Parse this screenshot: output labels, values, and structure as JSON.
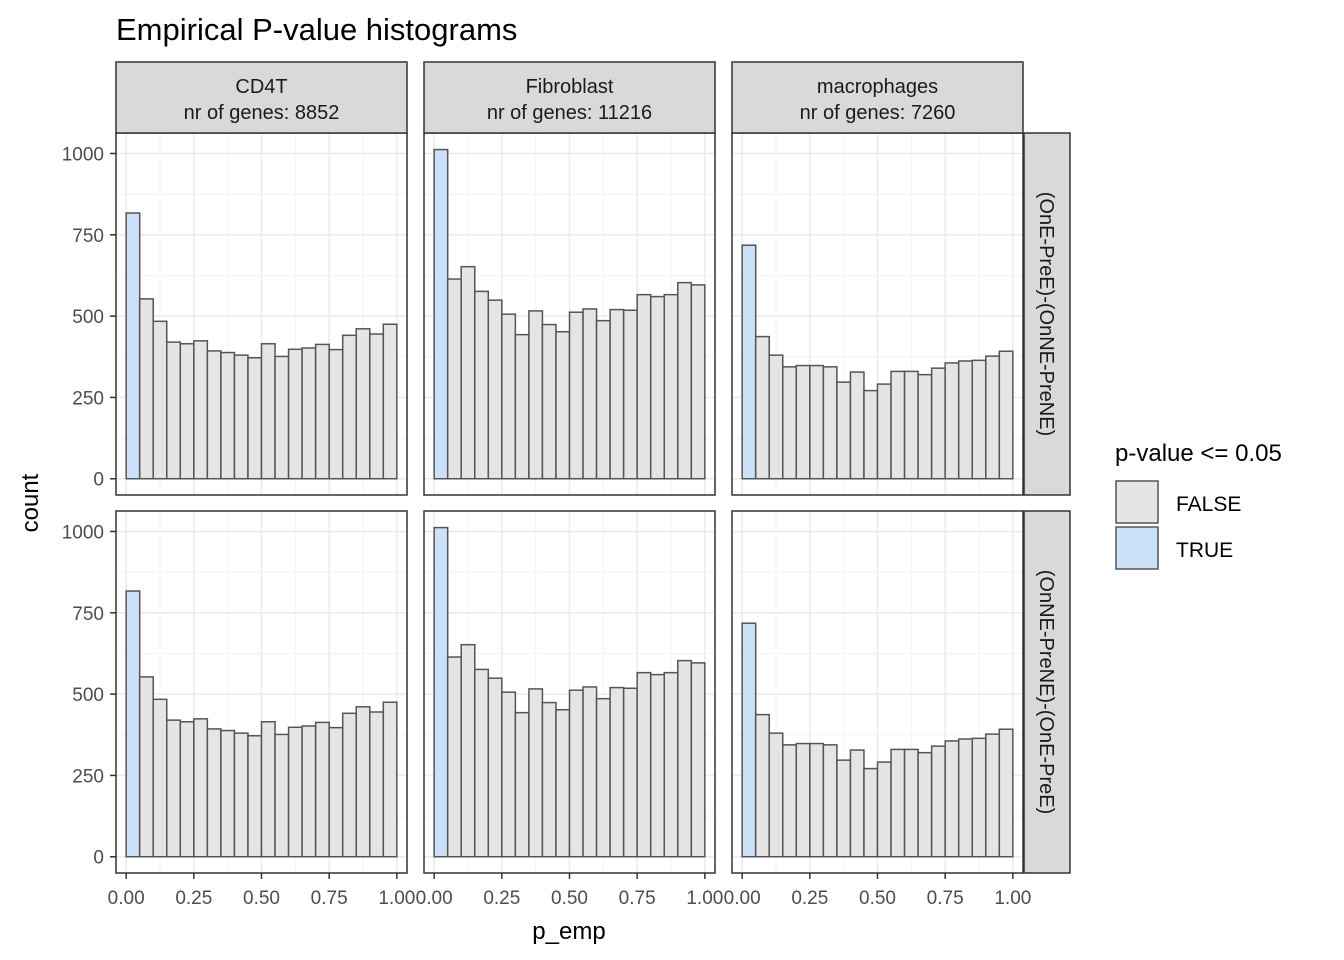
{
  "chart_data": {
    "type": "bar",
    "title": "Empirical P-value histograms",
    "xlabel": "p_emp",
    "ylabel": "count",
    "xlim": [
      -0.0375,
      1.0375
    ],
    "ylim": [
      -50,
      1063
    ],
    "x_ticks": [
      "0.00",
      "0.25",
      "0.50",
      "0.75",
      "1.00"
    ],
    "y_ticks": [
      "0",
      "250",
      "500",
      "750",
      "1000"
    ],
    "grid": true,
    "facet_columns": [
      {
        "name": "CD4T",
        "subtitle": "nr of genes: 8852"
      },
      {
        "name": "Fibroblast",
        "subtitle": "nr of genes: 11216"
      },
      {
        "name": "macrophages",
        "subtitle": "nr of genes: 7260"
      }
    ],
    "facet_rows": [
      "(OnE-PreE)-(OnNE-PreNE)",
      "(OnNE-PreNE)-(OnE-PreE)"
    ],
    "bin_width": 0.05,
    "bin_starts": [
      0.0,
      0.05,
      0.1,
      0.15,
      0.2,
      0.25,
      0.3,
      0.35,
      0.4,
      0.45,
      0.5,
      0.55,
      0.6,
      0.65,
      0.7,
      0.75,
      0.8,
      0.85,
      0.9,
      0.95
    ],
    "panels": [
      {
        "row": 0,
        "col": 0,
        "values": [
          817,
          553,
          484,
          420,
          415,
          424,
          393,
          388,
          380,
          372,
          415,
          376,
          398,
          402,
          413,
          397,
          441,
          461,
          445,
          475
        ]
      },
      {
        "row": 0,
        "col": 1,
        "values": [
          1012,
          614,
          652,
          576,
          549,
          506,
          443,
          516,
          474,
          452,
          512,
          522,
          486,
          520,
          518,
          566,
          560,
          566,
          603,
          596
        ]
      },
      {
        "row": 0,
        "col": 2,
        "values": [
          718,
          437,
          380,
          344,
          348,
          348,
          344,
          297,
          328,
          271,
          291,
          330,
          330,
          320,
          340,
          356,
          362,
          364,
          377,
          392
        ]
      },
      {
        "row": 1,
        "col": 0,
        "values": [
          817,
          553,
          484,
          420,
          415,
          424,
          393,
          388,
          380,
          372,
          415,
          376,
          398,
          402,
          413,
          397,
          441,
          461,
          445,
          475
        ]
      },
      {
        "row": 1,
        "col": 1,
        "values": [
          1012,
          614,
          652,
          576,
          549,
          506,
          443,
          516,
          474,
          452,
          512,
          522,
          486,
          520,
          518,
          566,
          560,
          566,
          603,
          596
        ]
      },
      {
        "row": 1,
        "col": 2,
        "values": [
          718,
          437,
          380,
          344,
          348,
          348,
          344,
          297,
          328,
          271,
          291,
          330,
          330,
          320,
          340,
          356,
          362,
          364,
          377,
          392
        ]
      }
    ],
    "legend": {
      "title": "p-value <= 0.05",
      "position": "right",
      "entries": [
        {
          "label": "FALSE",
          "color": "#e5e5e5"
        },
        {
          "label": "TRUE",
          "color": "#cce0f9"
        }
      ]
    },
    "colors": {
      "bar_outline": "#555555",
      "strip_fill": "#d9d9d9",
      "panel_border": "#333333",
      "grid": "#ebebeb"
    }
  }
}
